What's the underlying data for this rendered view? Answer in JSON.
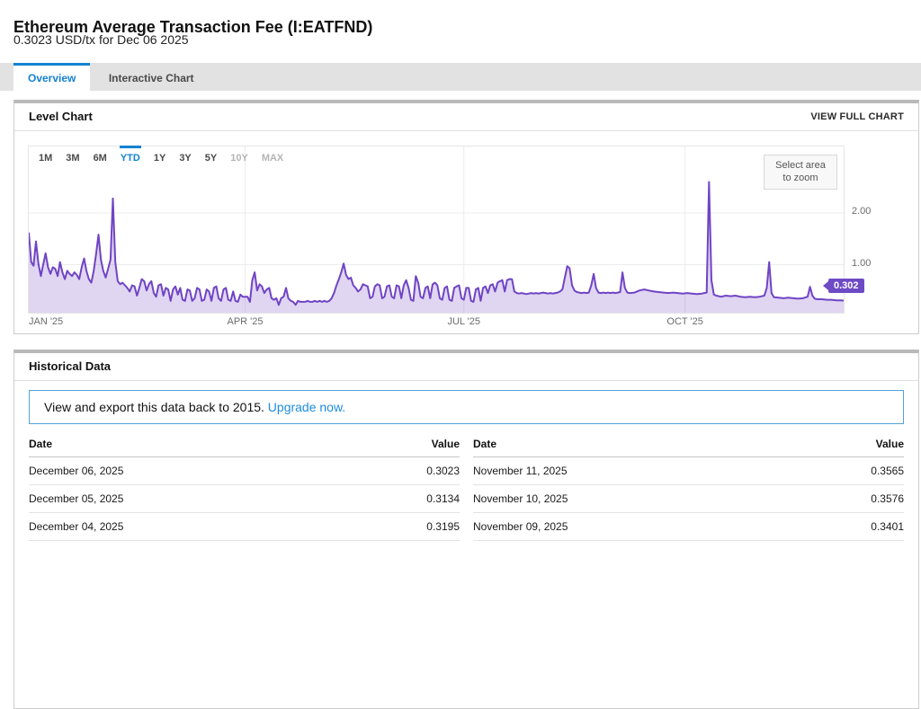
{
  "page": {
    "title": "Ethereum Average Transaction Fee (I:EATFND)",
    "subtitle": "0.3023 USD/tx for Dec 06 2025"
  },
  "tabs": [
    {
      "label": "Overview",
      "active": true
    },
    {
      "label": "Interactive Chart",
      "active": false
    }
  ],
  "level_chart": {
    "header": "Level Chart",
    "action": "VIEW FULL CHART",
    "zoom_hint": "Select area to zoom",
    "current_value_badge": "0.302",
    "ranges": [
      {
        "label": "1M",
        "state": "normal"
      },
      {
        "label": "3M",
        "state": "normal"
      },
      {
        "label": "6M",
        "state": "normal"
      },
      {
        "label": "YTD",
        "state": "active"
      },
      {
        "label": "1Y",
        "state": "normal"
      },
      {
        "label": "3Y",
        "state": "normal"
      },
      {
        "label": "5Y",
        "state": "normal"
      },
      {
        "label": "10Y",
        "state": "disabled"
      },
      {
        "label": "MAX",
        "state": "disabled"
      }
    ]
  },
  "chart_data": {
    "type": "line",
    "title": "Level Chart",
    "series_name": "Ethereum Average Transaction Fee (USD/tx)",
    "area_fill": true,
    "line_color": "#7044c4",
    "fill_color": "rgba(112,68,196,0.22)",
    "grid_color": "#ececec",
    "x_axis": {
      "start": "Jan 01 2025",
      "end": "Dec 06 2025",
      "domain_days": 339,
      "tick_labels": [
        "JAN '25",
        "APR '25",
        "JUL '25",
        "OCT '25"
      ],
      "tick_days": [
        0,
        90,
        181,
        273
      ]
    },
    "y_axis": {
      "ticks": [
        1.0,
        2.0
      ],
      "tick_labels": [
        "1.00",
        "2.00"
      ],
      "range": [
        0,
        3.3
      ]
    },
    "last_value": 0.302,
    "points": [
      [
        0,
        1.62
      ],
      [
        1,
        1.05
      ],
      [
        2,
        0.98
      ],
      [
        3,
        1.45
      ],
      [
        4,
        1.02
      ],
      [
        5,
        0.78
      ],
      [
        6,
        1.0
      ],
      [
        7,
        1.22
      ],
      [
        8,
        0.95
      ],
      [
        9,
        0.82
      ],
      [
        10,
        0.95
      ],
      [
        11,
        0.92
      ],
      [
        12,
        0.78
      ],
      [
        13,
        1.05
      ],
      [
        14,
        0.85
      ],
      [
        15,
        0.72
      ],
      [
        16,
        0.88
      ],
      [
        17,
        0.82
      ],
      [
        18,
        0.78
      ],
      [
        19,
        0.85
      ],
      [
        20,
        0.8
      ],
      [
        21,
        0.72
      ],
      [
        22,
        0.95
      ],
      [
        23,
        1.12
      ],
      [
        24,
        0.88
      ],
      [
        25,
        0.72
      ],
      [
        26,
        0.65
      ],
      [
        27,
        0.88
      ],
      [
        28,
        1.2
      ],
      [
        29,
        1.58
      ],
      [
        30,
        1.1
      ],
      [
        31,
        0.88
      ],
      [
        32,
        0.75
      ],
      [
        33,
        0.92
      ],
      [
        34,
        1.1
      ],
      [
        35,
        2.28
      ],
      [
        36,
        1.05
      ],
      [
        37,
        0.68
      ],
      [
        38,
        0.62
      ],
      [
        39,
        0.65
      ],
      [
        40,
        0.6
      ],
      [
        41,
        0.55
      ],
      [
        42,
        0.48
      ],
      [
        43,
        0.6
      ],
      [
        44,
        0.58
      ],
      [
        45,
        0.4
      ],
      [
        46,
        0.55
      ],
      [
        47,
        0.72
      ],
      [
        48,
        0.68
      ],
      [
        49,
        0.5
      ],
      [
        50,
        0.62
      ],
      [
        51,
        0.68
      ],
      [
        52,
        0.45
      ],
      [
        53,
        0.38
      ],
      [
        54,
        0.6
      ],
      [
        55,
        0.62
      ],
      [
        56,
        0.4
      ],
      [
        57,
        0.55
      ],
      [
        58,
        0.52
      ],
      [
        59,
        0.3
      ],
      [
        60,
        0.52
      ],
      [
        61,
        0.58
      ],
      [
        62,
        0.42
      ],
      [
        63,
        0.55
      ],
      [
        64,
        0.32
      ],
      [
        65,
        0.3
      ],
      [
        66,
        0.52
      ],
      [
        67,
        0.5
      ],
      [
        68,
        0.3
      ],
      [
        69,
        0.35
      ],
      [
        70,
        0.55
      ],
      [
        71,
        0.52
      ],
      [
        72,
        0.3
      ],
      [
        73,
        0.32
      ],
      [
        74,
        0.52
      ],
      [
        75,
        0.48
      ],
      [
        76,
        0.3
      ],
      [
        77,
        0.55
      ],
      [
        78,
        0.58
      ],
      [
        79,
        0.35
      ],
      [
        80,
        0.3
      ],
      [
        81,
        0.52
      ],
      [
        82,
        0.55
      ],
      [
        83,
        0.32
      ],
      [
        84,
        0.3
      ],
      [
        85,
        0.48
      ],
      [
        86,
        0.3
      ],
      [
        87,
        0.28
      ],
      [
        88,
        0.42
      ],
      [
        89,
        0.38
      ],
      [
        90,
        0.38
      ],
      [
        91,
        0.38
      ],
      [
        92,
        0.28
      ],
      [
        93,
        0.7
      ],
      [
        94,
        0.85
      ],
      [
        95,
        0.5
      ],
      [
        96,
        0.62
      ],
      [
        97,
        0.58
      ],
      [
        98,
        0.45
      ],
      [
        99,
        0.52
      ],
      [
        100,
        0.55
      ],
      [
        101,
        0.35
      ],
      [
        102,
        0.32
      ],
      [
        103,
        0.35
      ],
      [
        104,
        0.22
      ],
      [
        105,
        0.35
      ],
      [
        106,
        0.38
      ],
      [
        107,
        0.55
      ],
      [
        108,
        0.35
      ],
      [
        109,
        0.3
      ],
      [
        110,
        0.28
      ],
      [
        111,
        0.22
      ],
      [
        112,
        0.3
      ],
      [
        113,
        0.28
      ],
      [
        114,
        0.28
      ],
      [
        115,
        0.28
      ],
      [
        116,
        0.3
      ],
      [
        117,
        0.28
      ],
      [
        118,
        0.28
      ],
      [
        119,
        0.3
      ],
      [
        120,
        0.28
      ],
      [
        121,
        0.3
      ],
      [
        122,
        0.28
      ],
      [
        123,
        0.3
      ],
      [
        124,
        0.28
      ],
      [
        125,
        0.3
      ],
      [
        126,
        0.35
      ],
      [
        127,
        0.45
      ],
      [
        128,
        0.6
      ],
      [
        129,
        0.72
      ],
      [
        130,
        0.85
      ],
      [
        131,
        1.02
      ],
      [
        132,
        0.8
      ],
      [
        133,
        0.72
      ],
      [
        134,
        0.75
      ],
      [
        135,
        0.6
      ],
      [
        136,
        0.55
      ],
      [
        137,
        0.48
      ],
      [
        138,
        0.52
      ],
      [
        139,
        0.62
      ],
      [
        140,
        0.6
      ],
      [
        141,
        0.58
      ],
      [
        142,
        0.35
      ],
      [
        143,
        0.38
      ],
      [
        144,
        0.58
      ],
      [
        145,
        0.62
      ],
      [
        146,
        0.6
      ],
      [
        147,
        0.35
      ],
      [
        148,
        0.38
      ],
      [
        149,
        0.58
      ],
      [
        150,
        0.6
      ],
      [
        151,
        0.38
      ],
      [
        152,
        0.35
      ],
      [
        153,
        0.6
      ],
      [
        154,
        0.58
      ],
      [
        155,
        0.35
      ],
      [
        156,
        0.6
      ],
      [
        157,
        0.7
      ],
      [
        158,
        0.55
      ],
      [
        159,
        0.32
      ],
      [
        160,
        0.3
      ],
      [
        161,
        0.78
      ],
      [
        162,
        0.65
      ],
      [
        163,
        0.38
      ],
      [
        164,
        0.35
      ],
      [
        165,
        0.55
      ],
      [
        166,
        0.58
      ],
      [
        167,
        0.35
      ],
      [
        168,
        0.62
      ],
      [
        169,
        0.65
      ],
      [
        170,
        0.6
      ],
      [
        171,
        0.35
      ],
      [
        172,
        0.32
      ],
      [
        173,
        0.55
      ],
      [
        174,
        0.58
      ],
      [
        175,
        0.32
      ],
      [
        176,
        0.3
      ],
      [
        177,
        0.55
      ],
      [
        178,
        0.58
      ],
      [
        179,
        0.6
      ],
      [
        180,
        0.35
      ],
      [
        181,
        0.32
      ],
      [
        182,
        0.55
      ],
      [
        183,
        0.55
      ],
      [
        184,
        0.3
      ],
      [
        185,
        0.28
      ],
      [
        186,
        0.52
      ],
      [
        187,
        0.55
      ],
      [
        188,
        0.3
      ],
      [
        189,
        0.55
      ],
      [
        190,
        0.58
      ],
      [
        191,
        0.45
      ],
      [
        192,
        0.6
      ],
      [
        193,
        0.62
      ],
      [
        194,
        0.48
      ],
      [
        195,
        0.65
      ],
      [
        196,
        0.68
      ],
      [
        197,
        0.7
      ],
      [
        198,
        0.48
      ],
      [
        199,
        0.7
      ],
      [
        200,
        0.72
      ],
      [
        201,
        0.72
      ],
      [
        202,
        0.48
      ],
      [
        203,
        0.45
      ],
      [
        204,
        0.44
      ],
      [
        205,
        0.45
      ],
      [
        206,
        0.44
      ],
      [
        207,
        0.43
      ],
      [
        208,
        0.44
      ],
      [
        209,
        0.45
      ],
      [
        210,
        0.44
      ],
      [
        211,
        0.45
      ],
      [
        212,
        0.44
      ],
      [
        213,
        0.45
      ],
      [
        214,
        0.46
      ],
      [
        215,
        0.45
      ],
      [
        216,
        0.44
      ],
      [
        217,
        0.45
      ],
      [
        218,
        0.44
      ],
      [
        219,
        0.45
      ],
      [
        220,
        0.46
      ],
      [
        221,
        0.48
      ],
      [
        222,
        0.52
      ],
      [
        223,
        0.75
      ],
      [
        224,
        0.97
      ],
      [
        225,
        0.93
      ],
      [
        226,
        0.6
      ],
      [
        227,
        0.5
      ],
      [
        228,
        0.47
      ],
      [
        229,
        0.46
      ],
      [
        230,
        0.45
      ],
      [
        231,
        0.46
      ],
      [
        232,
        0.45
      ],
      [
        233,
        0.46
      ],
      [
        234,
        0.6
      ],
      [
        235,
        0.82
      ],
      [
        236,
        0.55
      ],
      [
        237,
        0.46
      ],
      [
        238,
        0.45
      ],
      [
        239,
        0.46
      ],
      [
        240,
        0.45
      ],
      [
        241,
        0.46
      ],
      [
        242,
        0.45
      ],
      [
        243,
        0.46
      ],
      [
        244,
        0.45
      ],
      [
        245,
        0.46
      ],
      [
        246,
        0.47
      ],
      [
        247,
        0.85
      ],
      [
        248,
        0.55
      ],
      [
        249,
        0.46
      ],
      [
        250,
        0.45
      ],
      [
        252,
        0.46
      ],
      [
        254,
        0.5
      ],
      [
        256,
        0.52
      ],
      [
        258,
        0.5
      ],
      [
        260,
        0.48
      ],
      [
        262,
        0.47
      ],
      [
        264,
        0.46
      ],
      [
        266,
        0.45
      ],
      [
        268,
        0.46
      ],
      [
        270,
        0.45
      ],
      [
        272,
        0.44
      ],
      [
        274,
        0.45
      ],
      [
        276,
        0.44
      ],
      [
        278,
        0.43
      ],
      [
        280,
        0.44
      ],
      [
        281,
        0.45
      ],
      [
        282,
        0.46
      ],
      [
        283,
        2.6
      ],
      [
        284,
        0.7
      ],
      [
        285,
        0.42
      ],
      [
        286,
        0.4
      ],
      [
        288,
        0.38
      ],
      [
        290,
        0.4
      ],
      [
        292,
        0.39
      ],
      [
        294,
        0.4
      ],
      [
        296,
        0.38
      ],
      [
        298,
        0.37
      ],
      [
        300,
        0.38
      ],
      [
        302,
        0.37
      ],
      [
        304,
        0.38
      ],
      [
        306,
        0.4
      ],
      [
        307,
        0.55
      ],
      [
        308,
        1.05
      ],
      [
        309,
        0.45
      ],
      [
        310,
        0.37
      ],
      [
        312,
        0.36
      ],
      [
        314,
        0.35
      ],
      [
        316,
        0.36
      ],
      [
        318,
        0.35
      ],
      [
        320,
        0.34
      ],
      [
        322,
        0.35
      ],
      [
        324,
        0.38
      ],
      [
        325,
        0.57
      ],
      [
        326,
        0.4
      ],
      [
        327,
        0.34
      ],
      [
        328,
        0.33
      ],
      [
        330,
        0.33
      ],
      [
        332,
        0.32
      ],
      [
        334,
        0.32
      ],
      [
        336,
        0.31
      ],
      [
        338,
        0.31
      ],
      [
        339,
        0.302
      ]
    ]
  },
  "historical": {
    "header": "Historical Data",
    "upgrade_text": "View and export this data back to 2015.",
    "upgrade_link": "Upgrade now.",
    "columns": [
      "Date",
      "Value"
    ],
    "tables": [
      {
        "rows": [
          [
            "December 06, 2025",
            "0.3023"
          ],
          [
            "December 05, 2025",
            "0.3134"
          ],
          [
            "December 04, 2025",
            "0.3195"
          ]
        ]
      },
      {
        "rows": [
          [
            "November 11, 2025",
            "0.3565"
          ],
          [
            "November 10, 2025",
            "0.3576"
          ],
          [
            "November 09, 2025",
            "0.3401"
          ]
        ]
      }
    ]
  },
  "colors": {
    "accent_blue": "#1482d0",
    "link_blue": "#1d8ce0",
    "line_purple": "#7044c4",
    "badge_purple": "#6e4ac5",
    "tabbar_gray": "#e2e2e2"
  }
}
